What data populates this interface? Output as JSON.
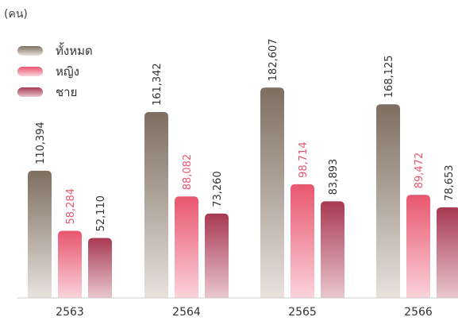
{
  "chart_data": {
    "type": "bar",
    "unit_label": "(คน)",
    "categories": [
      "2563",
      "2564",
      "2565",
      "2566"
    ],
    "series": [
      {
        "name": "ทั้งหมด",
        "values": [
          110394,
          161342,
          182607,
          168125
        ],
        "value_labels": [
          "110,394",
          "161,342",
          "182,607",
          "168,125"
        ],
        "color_top": "#7e6e60",
        "color_bottom": "#e8e2dd",
        "label_color": "#333333"
      },
      {
        "name": "หญิง",
        "values": [
          58284,
          88082,
          98714,
          89472
        ],
        "value_labels": [
          "58,284",
          "88,082",
          "98,714",
          "89,472"
        ],
        "color_top": "#e8566f",
        "color_bottom": "#fbd3da",
        "label_color": "#e8566f"
      },
      {
        "name": "ชาย",
        "values": [
          52110,
          73260,
          83893,
          78653
        ],
        "value_labels": [
          "52,110",
          "73,260",
          "83,893",
          "78,653"
        ],
        "color_top": "#a83a52",
        "color_bottom": "#e9c6cd",
        "label_color": "#333333"
      }
    ],
    "ylim": [
      0,
      200000
    ],
    "legend_position": "top-left",
    "grid": false
  }
}
